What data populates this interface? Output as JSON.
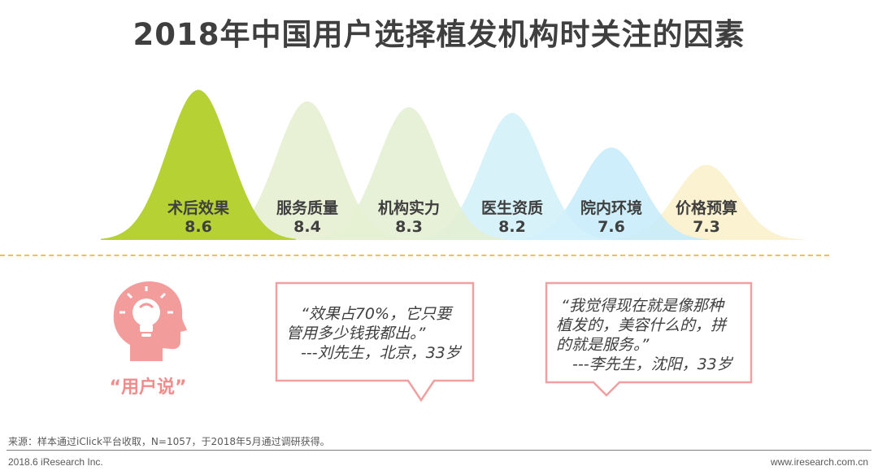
{
  "title": "2018年中国用户选择植发机构时关注的因素",
  "chart_data": {
    "type": "area",
    "categories": [
      "术后效果",
      "服务质量",
      "机构实力",
      "医生资质",
      "院内环境",
      "价格预算"
    ],
    "values": [
      8.6,
      8.4,
      8.3,
      8.2,
      7.6,
      7.3
    ],
    "colors": [
      "#b5d133",
      "#e6f0d2",
      "#e4efd4",
      "#d4f1fa",
      "#c8ecfa",
      "#fbf1cc"
    ]
  },
  "user_voice": {
    "label": "“用户说”",
    "icon": "head-lightbulb-icon",
    "quotes": [
      {
        "lines": [
          "“效果占70%，它只要",
          "管用多少钱我都出。”",
          "---刘先生，北京，33岁"
        ]
      },
      {
        "lines": [
          "“我觉得现在就是像那种",
          "植发的，美容什么的，拼",
          "的就是服务。”",
          "---李先生，沈阳，33岁"
        ]
      }
    ]
  },
  "footer": {
    "source": "来源：样本通过iClick平台收取，N=1057，于2018年5月通过调研获得。",
    "copyright": "2018.6 iResearch Inc.",
    "website": "www.iresearch.com.cn"
  },
  "accent_colors": {
    "quote_border": "#f0a0a0",
    "head": "#f29c9c",
    "dash": "#f2c14e"
  }
}
